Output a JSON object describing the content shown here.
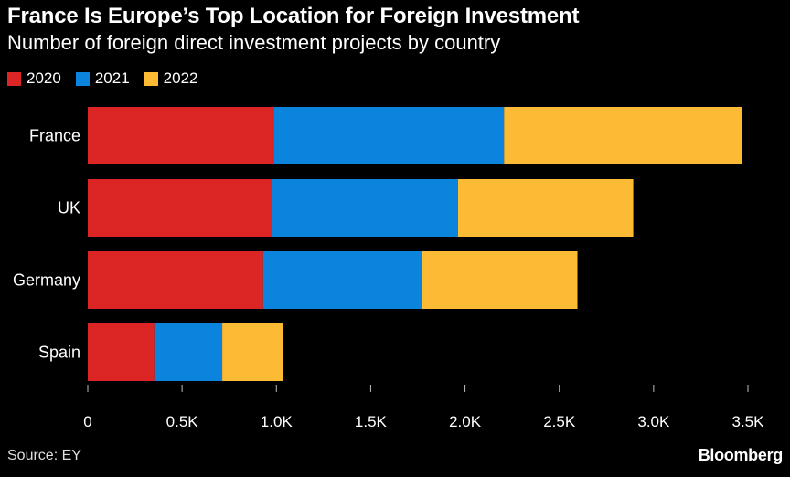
{
  "chart_data": {
    "type": "bar",
    "orientation": "horizontal",
    "stacked": true,
    "title": "France Is Europe’s Top Location for Foreign Investment",
    "subtitle": "Number of foreign direct investment projects by country",
    "categories": [
      "France",
      "UK",
      "Germany",
      "Spain"
    ],
    "series": [
      {
        "name": "2020",
        "color": "#dc2626",
        "values": [
          985,
          975,
          930,
          353
        ]
      },
      {
        "name": "2021",
        "color": "#0a84dc",
        "values": [
          1222,
          988,
          840,
          360
        ]
      },
      {
        "name": "2022",
        "color": "#fdba35",
        "values": [
          1259,
          929,
          826,
          322
        ]
      }
    ],
    "xlim": [
      0,
      3500
    ],
    "xticks": [
      0,
      500,
      1000,
      1500,
      2000,
      2500,
      3000,
      3500
    ],
    "xtick_labels": [
      "0",
      "0.5K",
      "1.0K",
      "1.5K",
      "2.0K",
      "2.5K",
      "3.0K",
      "3.5K"
    ],
    "xlabel": "",
    "ylabel": "",
    "legend_position": "top-left",
    "source": "Source: EY"
  },
  "brand": "Bloomberg"
}
